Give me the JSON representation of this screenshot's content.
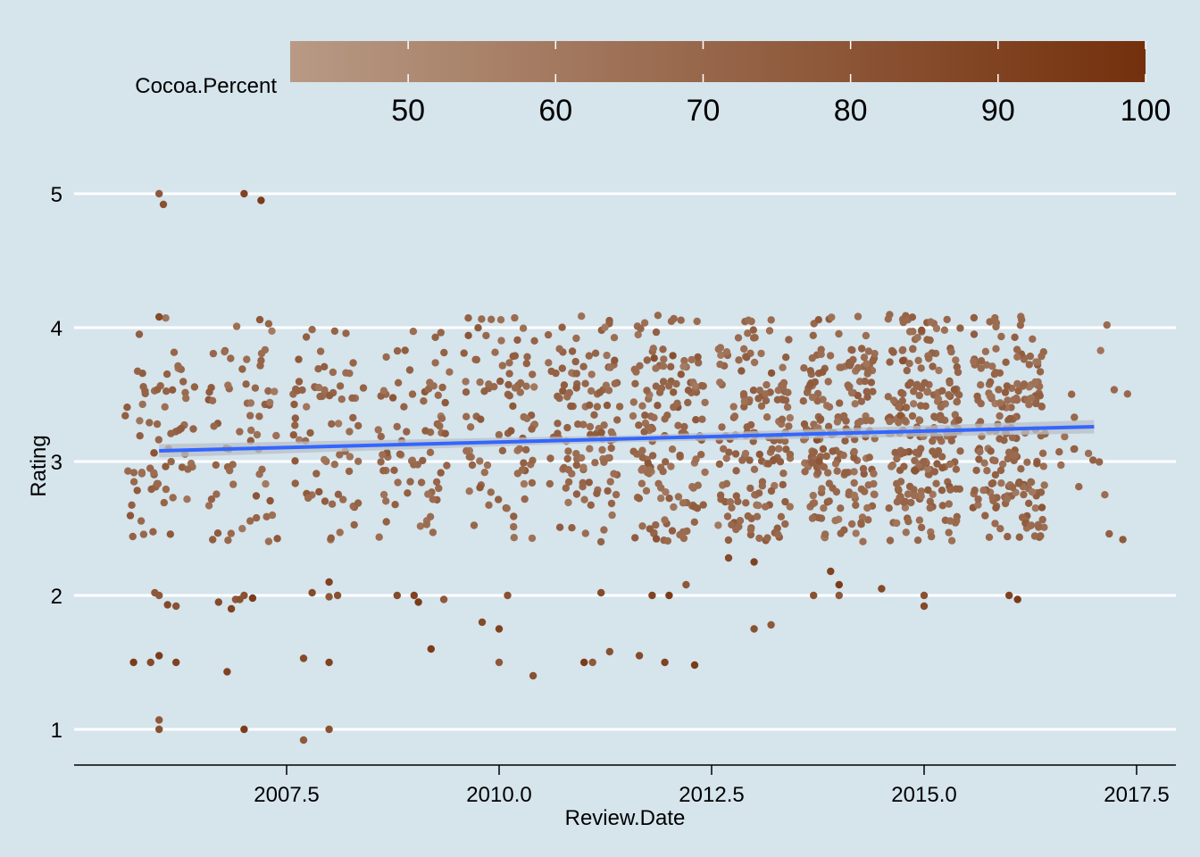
{
  "chart_data": {
    "type": "scatter",
    "title": "",
    "xlabel": "Review.Date",
    "ylabel": "Rating",
    "xlim": [
      2005.0,
      2017.9
    ],
    "ylim": [
      0.85,
      5.25
    ],
    "x_ticks": [
      2007.5,
      2010.0,
      2012.5,
      2015.0,
      2017.5
    ],
    "x_tick_labels": [
      "2007.5",
      "2010.0",
      "2012.5",
      "2015.0",
      "2017.5"
    ],
    "y_ticks": [
      1,
      2,
      3,
      4,
      5
    ],
    "y_tick_labels": [
      "1",
      "2",
      "3",
      "4",
      "5"
    ],
    "grid": "horizontal",
    "legend": {
      "title": "Cocoa.Percent",
      "position": "top",
      "type": "colorbar",
      "range": [
        42,
        100
      ],
      "ticks": [
        50,
        60,
        70,
        80,
        90,
        100
      ],
      "tick_labels": [
        "50",
        "60",
        "70",
        "80",
        "90",
        "100"
      ],
      "color_low": "#b89a85",
      "color_high": "#74300c"
    },
    "colors": {
      "background": "#d6e4ec",
      "grid": "#ffffff",
      "trend_line": "#3366ff",
      "confidence_band": "#b8c0c8"
    },
    "trend_line": {
      "method": "lm",
      "x": [
        2006.0,
        2017.0
      ],
      "y": [
        3.08,
        3.26
      ]
    },
    "series": [
      {
        "x": [
          2006.0,
          2006.05,
          2006.0,
          2007.0,
          2007.2,
          2006.0,
          2006.0,
          2006.1,
          2006.8,
          2007.0,
          2007.7,
          2008.0,
          2005.9,
          2006.2,
          2006.0,
          2006.9,
          2007.0,
          2007.8,
          2008.0,
          2005.7,
          2006.0,
          2006.95,
          2007.7,
          2008.0,
          2009.2,
          2010.0,
          2010.4,
          2009.8,
          2010.0,
          2011.0,
          2011.1,
          2011.3,
          2011.65,
          2011.95,
          2012.3,
          2013.2,
          2013.0,
          2012.7,
          2013.0,
          2014.0,
          2014.0,
          2015.0,
          2015.0,
          2016.0,
          2016.1,
          2005.95,
          2006.2,
          2006.7,
          2006.85,
          2007.1,
          2008.0,
          2008.1,
          2008.8,
          2009.0,
          2009.05,
          2009.35,
          2010.1,
          2011.2,
          2011.8,
          2012.0,
          2012.2,
          2013.7,
          2014.5,
          2013.9
        ],
        "y": [
          5.0,
          4.92,
          4.08,
          5.0,
          4.95,
          1.07,
          1.0,
          1.93,
          1.43,
          1.0,
          0.92,
          1.0,
          1.5,
          1.5,
          1.55,
          1.97,
          2.0,
          2.02,
          2.1,
          1.5,
          2.0,
          1.97,
          1.53,
          1.5,
          1.6,
          1.5,
          1.4,
          1.8,
          1.75,
          1.5,
          1.5,
          1.58,
          1.55,
          1.5,
          1.48,
          1.78,
          1.75,
          2.28,
          2.25,
          2.08,
          2.0,
          2.0,
          1.92,
          2.0,
          1.97,
          2.02,
          1.92,
          1.95,
          1.9,
          1.98,
          1.99,
          2.0,
          2.0,
          2.0,
          1.95,
          1.97,
          2.0,
          2.02,
          2.0,
          2.0,
          2.08,
          2.0,
          2.05,
          2.18
        ]
      }
    ]
  }
}
